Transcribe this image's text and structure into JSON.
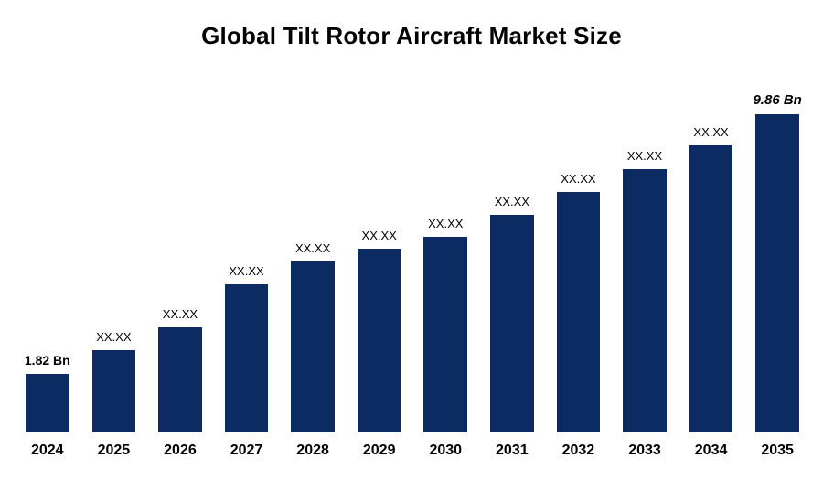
{
  "title": "Global Tilt Rotor Aircraft Market Size",
  "chart_data": {
    "type": "bar",
    "title": "Global Tilt Rotor Aircraft Market Size",
    "categories": [
      "2024",
      "2025",
      "2026",
      "2027",
      "2028",
      "2029",
      "2030",
      "2031",
      "2032",
      "2033",
      "2034",
      "2035"
    ],
    "values": [
      1.82,
      2.55,
      3.25,
      4.6,
      5.3,
      5.7,
      6.05,
      6.75,
      7.45,
      8.15,
      8.9,
      9.86
    ],
    "value_labels": [
      "1.82 Bn",
      "XX.XX",
      "XX.XX",
      "XX.XX",
      "XX.XX",
      "XX.XX",
      "XX.XX",
      "XX.XX",
      "XX.XX",
      "XX.XX",
      "XX.XX",
      "9.86 Bn"
    ],
    "first_value": "1.82 Bn",
    "last_value": "9.86 Bn",
    "xlabel": "",
    "ylabel": "",
    "ylim": [
      0,
      9.86
    ],
    "grid": false,
    "legend": false,
    "bar_color": "#0d2b63",
    "text_color": "#000000",
    "background_color": "#ffffff"
  }
}
